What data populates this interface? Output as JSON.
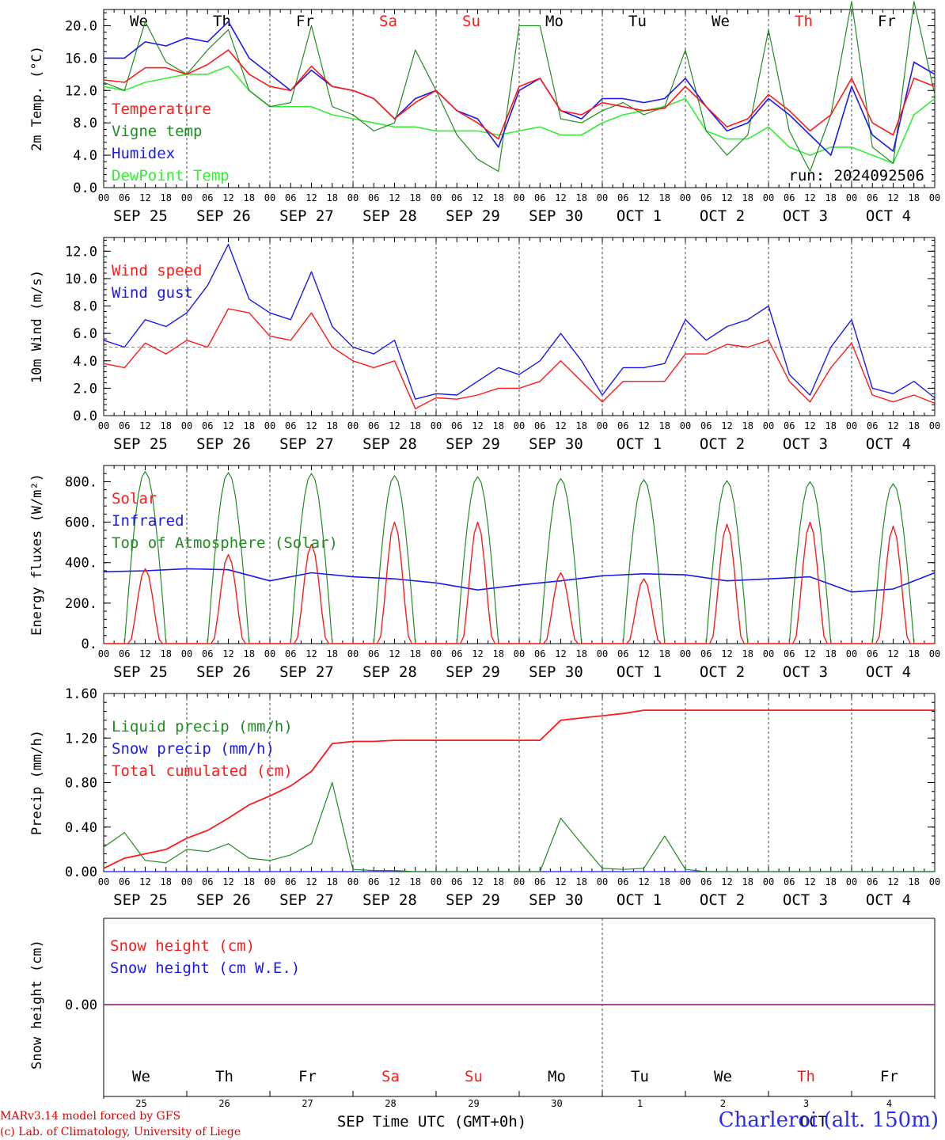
{
  "colors": {
    "red": "#ff1a1a",
    "green": "#228b22",
    "blue": "#1a1aee",
    "lightgreen": "#33ee33",
    "purple": "#7b2f9e"
  },
  "days": {
    "names": [
      "We",
      "Th",
      "Fr",
      "Sa",
      "Su",
      "Mo",
      "Tu",
      "We",
      "Th",
      "Fr"
    ],
    "weekend": [
      false,
      false,
      false,
      true,
      true,
      false,
      false,
      false,
      true,
      false
    ],
    "dates": [
      "SEP 25",
      "SEP 26",
      "SEP 27",
      "SEP 28",
      "SEP 29",
      "SEP 30",
      "OCT  1",
      "OCT  2",
      "OCT  3",
      "OCT  4"
    ],
    "daynums": [
      "25",
      "26",
      "27",
      "28",
      "29",
      "30",
      "1",
      "2",
      "3",
      "4"
    ],
    "hours": [
      "00",
      "06",
      "12",
      "18"
    ],
    "end_hour": "00",
    "sep_label": "SEP",
    "oct_label": "OCT"
  },
  "run_label": "run: 2024092506",
  "xlabel": "Time UTC (GMT+0h)",
  "footer": {
    "line1": "MARv3.14 model forced by GFS",
    "line2": "(c) Lab. of Climatology, University of Liege"
  },
  "station": "Charleroi (alt. 150m)",
  "chart_data": [
    {
      "type": "line",
      "ylabel": "2m Temp. (°C)",
      "ylim": [
        0,
        22
      ],
      "yticks": [
        0,
        4,
        8,
        12,
        16,
        20
      ],
      "ytick_labels": [
        "0.0",
        "4.0",
        "8.0",
        "12.0",
        "16.0",
        "20.0"
      ],
      "legend": [
        "Temperature",
        "Vigne temp",
        "Humidex",
        "DewPoint Temp"
      ],
      "x_hours": [
        0,
        6,
        12,
        18,
        24,
        30,
        36,
        42,
        48,
        54,
        60,
        66,
        72,
        78,
        84,
        90,
        96,
        102,
        108,
        114,
        120,
        126,
        132,
        138,
        144,
        150,
        156,
        162,
        168,
        174,
        180,
        186,
        192,
        198,
        204,
        210,
        216,
        222,
        228,
        234,
        240
      ],
      "series": [
        {
          "name": "Temperature",
          "color": "red",
          "values": [
            13.3,
            13.0,
            14.8,
            14.8,
            14.0,
            15.2,
            17.0,
            14.0,
            12.5,
            12.0,
            15.0,
            12.5,
            12.0,
            11.0,
            8.5,
            10.5,
            12.0,
            9.5,
            8.0,
            6.0,
            12.5,
            13.5,
            9.5,
            9.0,
            10.5,
            10.0,
            9.5,
            9.8,
            12.5,
            10.0,
            7.5,
            8.5,
            11.5,
            9.5,
            7.0,
            9.0,
            13.5,
            8.0,
            6.5,
            13.5,
            12.5
          ]
        },
        {
          "name": "Vigne temp",
          "color": "green",
          "values": [
            13.0,
            12.0,
            20.5,
            15.5,
            14.0,
            17.0,
            19.5,
            12.0,
            10.0,
            10.5,
            20.0,
            10.0,
            9.0,
            7.0,
            8.0,
            17.0,
            12.0,
            6.5,
            3.5,
            2.0,
            20.0,
            20.0,
            8.5,
            8.0,
            9.5,
            10.5,
            9.0,
            10.0,
            17.0,
            7.0,
            4.0,
            6.5,
            19.5,
            7.0,
            2.0,
            9.0,
            23.0,
            5.0,
            3.0,
            23.0,
            11.5
          ]
        },
        {
          "name": "Humidex",
          "color": "blue",
          "values": [
            16.0,
            16.0,
            18.0,
            17.5,
            18.5,
            18.0,
            20.5,
            16.0,
            14.0,
            12.0,
            14.5,
            12.5,
            12.0,
            11.0,
            8.5,
            11.0,
            12.0,
            9.5,
            8.5,
            5.0,
            12.0,
            13.5,
            9.5,
            8.5,
            11.0,
            11.0,
            10.5,
            11.0,
            13.5,
            10.0,
            7.0,
            8.0,
            11.0,
            9.0,
            6.5,
            4.0,
            12.5,
            6.5,
            4.5,
            15.5,
            14.0
          ]
        },
        {
          "name": "DewPoint Temp",
          "color": "lightgreen",
          "values": [
            12.5,
            12.0,
            13.0,
            13.5,
            14.0,
            14.0,
            15.0,
            12.0,
            10.0,
            10.0,
            10.0,
            9.0,
            8.5,
            8.0,
            7.5,
            7.5,
            7.0,
            7.0,
            7.0,
            6.5,
            7.0,
            7.5,
            6.5,
            6.5,
            8.0,
            9.0,
            9.5,
            10.0,
            11.0,
            7.0,
            6.0,
            6.0,
            7.5,
            5.0,
            4.0,
            5.0,
            5.0,
            4.0,
            3.0,
            9.0,
            11.0
          ]
        }
      ]
    },
    {
      "type": "line",
      "ylabel": "10m Wind (m/s)",
      "ylim": [
        0,
        13
      ],
      "yticks": [
        0,
        2,
        4,
        6,
        8,
        10,
        12
      ],
      "ytick_labels": [
        "0.0",
        "2.0",
        "4.0",
        "6.0",
        "8.0",
        "10.0",
        "12.0"
      ],
      "ref_line": 5,
      "legend": [
        "Wind speed",
        "Wind gust"
      ],
      "x_hours": [
        0,
        6,
        12,
        18,
        24,
        30,
        36,
        42,
        48,
        54,
        60,
        66,
        72,
        78,
        84,
        90,
        96,
        102,
        108,
        114,
        120,
        126,
        132,
        138,
        144,
        150,
        156,
        162,
        168,
        174,
        180,
        186,
        192,
        198,
        204,
        210,
        216,
        222,
        228,
        234,
        240
      ],
      "series": [
        {
          "name": "Wind speed",
          "color": "red",
          "values": [
            3.8,
            3.5,
            5.3,
            4.5,
            5.5,
            5.0,
            7.8,
            7.5,
            5.8,
            5.5,
            7.5,
            5.0,
            4.0,
            3.5,
            4.0,
            0.5,
            1.3,
            1.2,
            1.5,
            2.0,
            2.0,
            2.5,
            4.0,
            2.5,
            1.0,
            2.5,
            2.5,
            2.5,
            4.5,
            4.5,
            5.2,
            5.0,
            5.5,
            2.5,
            1.0,
            3.5,
            5.3,
            1.5,
            1.0,
            1.5,
            0.9
          ]
        },
        {
          "name": "Wind gust",
          "color": "blue",
          "values": [
            5.5,
            5.0,
            7.0,
            6.5,
            7.5,
            9.5,
            12.5,
            8.5,
            7.5,
            7.0,
            10.5,
            6.5,
            5.0,
            4.5,
            5.5,
            1.2,
            1.6,
            1.5,
            2.5,
            3.5,
            3.0,
            4.0,
            6.0,
            4.0,
            1.5,
            3.5,
            3.5,
            3.8,
            7.0,
            5.5,
            6.5,
            7.0,
            8.0,
            3.0,
            1.5,
            5.0,
            7.0,
            2.0,
            1.6,
            2.5,
            1.3
          ]
        }
      ]
    },
    {
      "type": "line",
      "ylabel": "Energy fluxes (W/m²)",
      "ylim": [
        0,
        880
      ],
      "yticks": [
        0,
        200,
        400,
        600,
        800
      ],
      "ytick_labels": [
        "0.",
        "200.",
        "400.",
        "600.",
        "800."
      ],
      "legend": [
        "Solar",
        "Infrared",
        "Top of Atmosphere (Solar)"
      ],
      "toa_peaks": [
        850,
        845,
        840,
        830,
        825,
        815,
        810,
        805,
        800,
        790
      ],
      "solar_peaks": [
        370,
        440,
        490,
        600,
        600,
        350,
        320,
        590,
        600,
        580
      ],
      "infrared": {
        "x_hours": [
          0,
          12,
          24,
          36,
          48,
          60,
          72,
          84,
          96,
          108,
          120,
          132,
          144,
          156,
          168,
          180,
          192,
          204,
          216,
          228,
          240
        ],
        "values": [
          355,
          360,
          370,
          365,
          310,
          350,
          330,
          320,
          300,
          265,
          290,
          310,
          335,
          345,
          340,
          310,
          320,
          330,
          255,
          270,
          350
        ]
      },
      "series": [
        {
          "name": "Solar",
          "color": "red"
        },
        {
          "name": "Infrared",
          "color": "blue"
        },
        {
          "name": "Top of Atmosphere (Solar)",
          "color": "green"
        }
      ]
    },
    {
      "type": "line",
      "ylabel": "Precip (mm/h)",
      "ylim": [
        0,
        1.6
      ],
      "yticks": [
        0,
        0.4,
        0.8,
        1.2,
        1.6
      ],
      "ytick_labels": [
        "0.00",
        "0.40",
        "0.80",
        "1.20",
        "1.60"
      ],
      "legend": [
        "Liquid precip (mm/h)",
        "Snow precip (mm/h)",
        "Total cumulated (cm)"
      ],
      "x_hours": [
        0,
        6,
        12,
        18,
        24,
        30,
        36,
        42,
        48,
        54,
        60,
        66,
        72,
        78,
        84,
        90,
        96,
        102,
        108,
        114,
        120,
        126,
        132,
        138,
        144,
        150,
        156,
        162,
        168,
        174,
        180,
        186,
        192,
        198,
        204,
        210,
        216,
        222,
        228,
        234,
        240
      ],
      "series": [
        {
          "name": "Liquid precip (mm/h)",
          "color": "green",
          "values": [
            0.22,
            0.35,
            0.1,
            0.08,
            0.2,
            0.18,
            0.25,
            0.12,
            0.1,
            0.15,
            0.25,
            0.8,
            0.02,
            0.01,
            0.01,
            0.0,
            0.0,
            0.0,
            0.0,
            0.0,
            0.0,
            0.0,
            0.48,
            0.25,
            0.03,
            0.02,
            0.03,
            0.32,
            0.02,
            0.0,
            0.0,
            0.0,
            0.0,
            0.0,
            0.0,
            0.0,
            0.0,
            0.0,
            0.0,
            0.0,
            0.0
          ]
        },
        {
          "name": "Snow precip (mm/h)",
          "color": "blue",
          "values": [
            0,
            0,
            0,
            0,
            0,
            0,
            0,
            0,
            0,
            0,
            0,
            0,
            0,
            0,
            0,
            0,
            0,
            0,
            0,
            0,
            0,
            0,
            0,
            0,
            0,
            0,
            0,
            0,
            0,
            0,
            0,
            0,
            0,
            0,
            0,
            0,
            0,
            0,
            0,
            0,
            0
          ]
        },
        {
          "name": "Total cumulated (cm)",
          "color": "red",
          "values": [
            0.03,
            0.12,
            0.16,
            0.2,
            0.3,
            0.37,
            0.48,
            0.6,
            0.68,
            0.77,
            0.9,
            1.15,
            1.17,
            1.17,
            1.18,
            1.18,
            1.18,
            1.18,
            1.18,
            1.18,
            1.18,
            1.18,
            1.36,
            1.38,
            1.4,
            1.42,
            1.45,
            1.45,
            1.45,
            1.45,
            1.45,
            1.45,
            1.45,
            1.45,
            1.45,
            1.45,
            1.45,
            1.45,
            1.45,
            1.45,
            1.45
          ]
        }
      ]
    },
    {
      "type": "line",
      "ylabel": "Snow height (cm)",
      "ylim": [
        -1,
        1
      ],
      "yticks": [
        0
      ],
      "ytick_labels": [
        "0.00"
      ],
      "legend": [
        "Snow height (cm)",
        "Snow height (cm W.E.)"
      ],
      "series": [
        {
          "name": "Snow height (cm)",
          "color": "red",
          "values": [
            0,
            0
          ]
        },
        {
          "name": "Snow height (cm W.E.)",
          "color": "blue",
          "values": [
            0,
            0
          ]
        }
      ]
    }
  ]
}
